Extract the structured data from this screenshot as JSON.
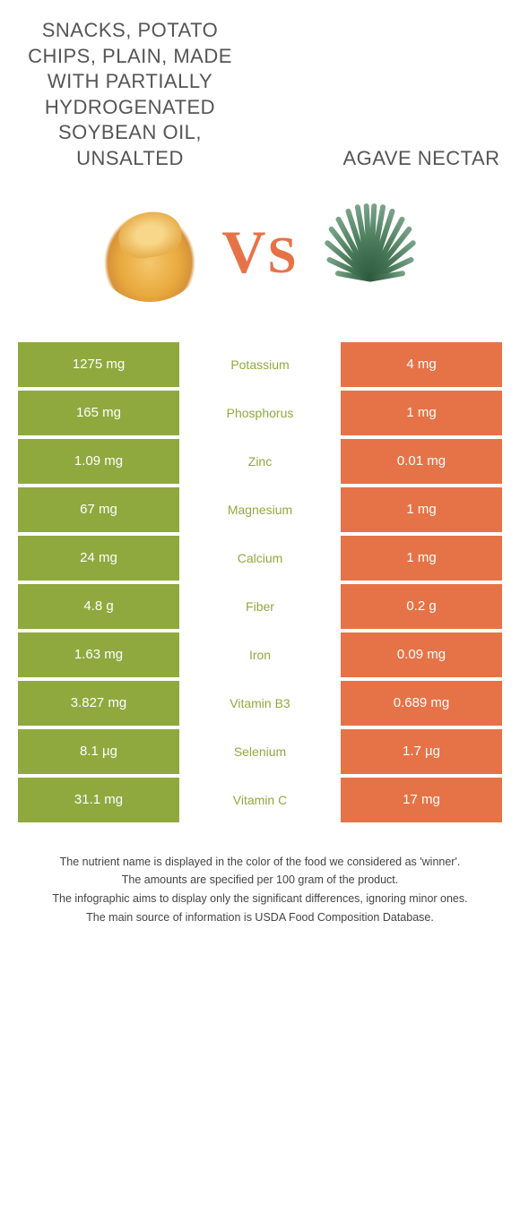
{
  "titles": {
    "left": "SNACKS, POTATO CHIPS, PLAIN, MADE WITH PARTIALLY HYDROGENATED SOYBEAN OIL, UNSALTED",
    "right": "AGAVE NECTAR"
  },
  "vs": "VS",
  "colors": {
    "left_bg": "#8fa93f",
    "right_bg": "#e67348",
    "left_text": "#8fa93f",
    "right_text": "#e67348"
  },
  "rows": [
    {
      "left": "1275 mg",
      "label": "Potassium",
      "right": "4 mg",
      "winner": "left"
    },
    {
      "left": "165 mg",
      "label": "Phosphorus",
      "right": "1 mg",
      "winner": "left"
    },
    {
      "left": "1.09 mg",
      "label": "Zinc",
      "right": "0.01 mg",
      "winner": "left"
    },
    {
      "left": "67 mg",
      "label": "Magnesium",
      "right": "1 mg",
      "winner": "left"
    },
    {
      "left": "24 mg",
      "label": "Calcium",
      "right": "1 mg",
      "winner": "left"
    },
    {
      "left": "4.8 g",
      "label": "Fiber",
      "right": "0.2 g",
      "winner": "left"
    },
    {
      "left": "1.63 mg",
      "label": "Iron",
      "right": "0.09 mg",
      "winner": "left"
    },
    {
      "left": "3.827 mg",
      "label": "Vitamin B3",
      "right": "0.689 mg",
      "winner": "left"
    },
    {
      "left": "8.1 µg",
      "label": "Selenium",
      "right": "1.7 µg",
      "winner": "left"
    },
    {
      "left": "31.1 mg",
      "label": "Vitamin C",
      "right": "17 mg",
      "winner": "left"
    }
  ],
  "footnotes": [
    "The nutrient name is displayed in the color of the food we considered as 'winner'.",
    "The amounts are specified per 100 gram of the product.",
    "The infographic aims to display only the significant differences, ignoring minor ones.",
    "The main source of information is USDA Food Composition Database."
  ]
}
